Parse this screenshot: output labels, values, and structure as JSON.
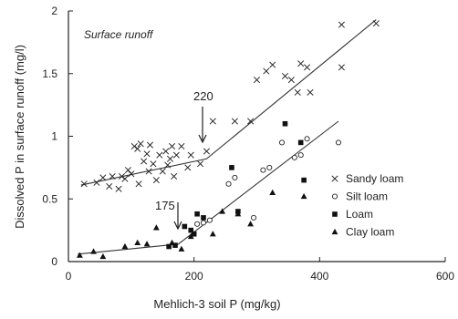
{
  "chart_data": {
    "type": "scatter",
    "subtitle": "Surface runoff",
    "xlabel": "Mehlich-3 soil P (mg/kg)",
    "ylabel": "Dissolved P in surface runoff (mg/l)",
    "xlim": [
      0,
      600
    ],
    "ylim": [
      0,
      2
    ],
    "xticks": [
      0,
      200,
      400,
      600
    ],
    "yticks": [
      0,
      0.5,
      1,
      1.5,
      2
    ],
    "xtick_labels": [
      "0",
      "200",
      "400",
      "600"
    ],
    "ytick_labels": [
      "0",
      "0.5",
      "1",
      "1.5",
      "2"
    ],
    "grid": false,
    "legend_position": "right",
    "series": [
      {
        "name": "Sandy loam",
        "marker": "x",
        "points": [
          [
            25,
            0.62
          ],
          [
            45,
            0.63
          ],
          [
            55,
            0.67
          ],
          [
            65,
            0.6
          ],
          [
            70,
            0.68
          ],
          [
            80,
            0.58
          ],
          [
            85,
            0.68
          ],
          [
            90,
            0.66
          ],
          [
            95,
            0.73
          ],
          [
            100,
            0.7
          ],
          [
            105,
            0.92
          ],
          [
            110,
            0.9
          ],
          [
            112,
            0.62
          ],
          [
            115,
            0.94
          ],
          [
            120,
            0.8
          ],
          [
            125,
            0.86
          ],
          [
            128,
            0.72
          ],
          [
            130,
            0.93
          ],
          [
            135,
            0.78
          ],
          [
            140,
            0.65
          ],
          [
            145,
            0.85
          ],
          [
            150,
            0.72
          ],
          [
            155,
            0.88
          ],
          [
            158,
            0.77
          ],
          [
            162,
            0.82
          ],
          [
            165,
            0.92
          ],
          [
            168,
            0.68
          ],
          [
            172,
            0.85
          ],
          [
            180,
            0.92
          ],
          [
            190,
            0.75
          ],
          [
            195,
            0.85
          ],
          [
            210,
            0.78
          ],
          [
            220,
            0.88
          ],
          [
            230,
            1.12
          ],
          [
            265,
            1.12
          ],
          [
            290,
            1.12
          ],
          [
            300,
            1.45
          ],
          [
            315,
            1.52
          ],
          [
            325,
            1.57
          ],
          [
            345,
            1.48
          ],
          [
            355,
            1.45
          ],
          [
            365,
            1.35
          ],
          [
            370,
            1.58
          ],
          [
            380,
            1.55
          ],
          [
            385,
            1.35
          ],
          [
            435,
            1.89
          ],
          [
            435,
            1.55
          ],
          [
            490,
            1.9
          ]
        ]
      },
      {
        "name": "Silt loam",
        "marker": "circle-open",
        "points": [
          [
            205,
            0.3
          ],
          [
            215,
            0.31
          ],
          [
            225,
            0.33
          ],
          [
            255,
            0.62
          ],
          [
            265,
            0.67
          ],
          [
            295,
            0.35
          ],
          [
            310,
            0.73
          ],
          [
            320,
            0.75
          ],
          [
            340,
            0.95
          ],
          [
            360,
            0.83
          ],
          [
            370,
            0.85
          ],
          [
            380,
            0.98
          ],
          [
            430,
            0.95
          ]
        ]
      },
      {
        "name": "Loam",
        "marker": "square",
        "points": [
          [
            160,
            0.12
          ],
          [
            170,
            0.13
          ],
          [
            185,
            0.28
          ],
          [
            195,
            0.25
          ],
          [
            200,
            0.22
          ],
          [
            205,
            0.38
          ],
          [
            215,
            0.35
          ],
          [
            260,
            0.75
          ],
          [
            270,
            0.4
          ],
          [
            345,
            1.1
          ],
          [
            370,
            0.95
          ],
          [
            375,
            0.65
          ]
        ]
      },
      {
        "name": "Clay loam",
        "marker": "triangle",
        "points": [
          [
            18,
            0.05
          ],
          [
            40,
            0.08
          ],
          [
            55,
            0.04
          ],
          [
            90,
            0.12
          ],
          [
            110,
            0.15
          ],
          [
            125,
            0.14
          ],
          [
            140,
            0.27
          ],
          [
            165,
            0.15
          ],
          [
            180,
            0.1
          ],
          [
            195,
            0.2
          ],
          [
            230,
            0.22
          ],
          [
            245,
            0.4
          ],
          [
            270,
            0.38
          ],
          [
            290,
            0.3
          ],
          [
            325,
            0.55
          ],
          [
            375,
            0.52
          ]
        ]
      }
    ],
    "fit_lines": [
      {
        "series": "Sandy loam",
        "points": [
          [
            20,
            0.61
          ],
          [
            220,
            0.82
          ],
          [
            490,
            1.93
          ]
        ]
      },
      {
        "series": "Silt loam, Loam and Clay loam",
        "points": [
          [
            15,
            0.06
          ],
          [
            175,
            0.14
          ],
          [
            430,
            1.12
          ]
        ]
      }
    ],
    "annotations": [
      {
        "text": "220",
        "x": 220,
        "y": 0.82
      },
      {
        "text": "175",
        "x": 175,
        "y": 0.14
      }
    ]
  }
}
